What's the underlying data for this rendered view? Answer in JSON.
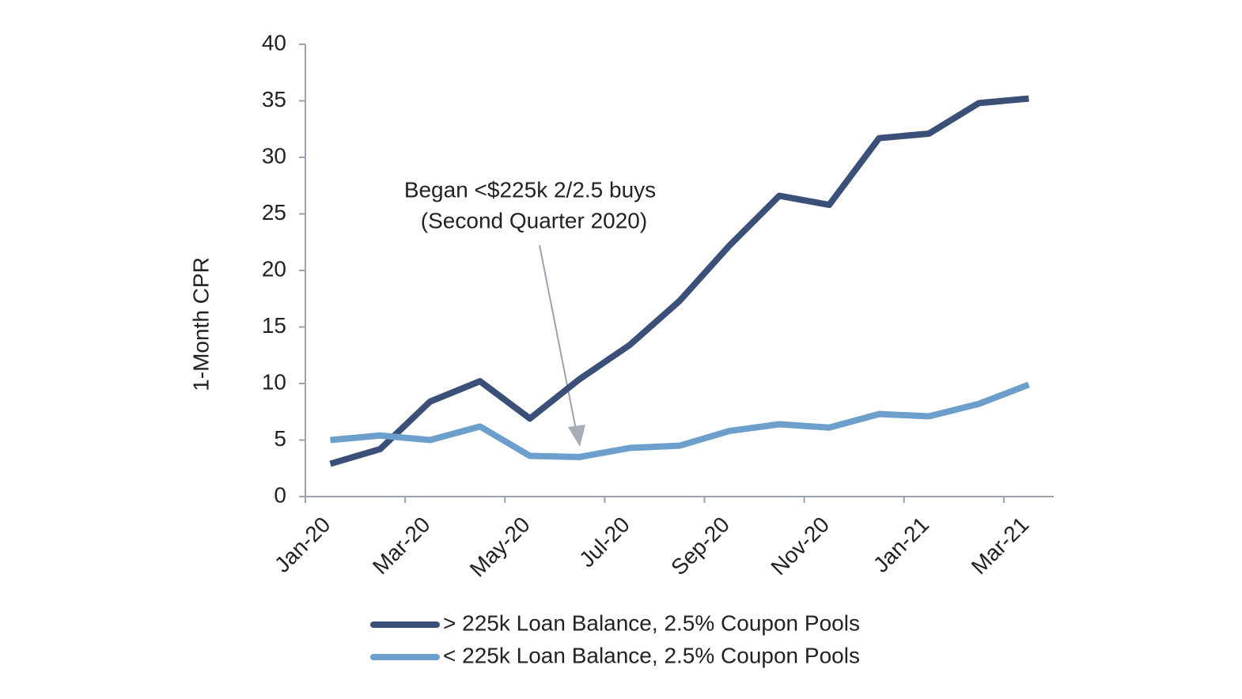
{
  "chart_data": {
    "type": "line",
    "y_label": "1-Month CPR",
    "annotation": [
      "Began <$225k 2/2.5 buys",
      "(Second Quarter 2020)"
    ],
    "categories": [
      "Jan-20",
      null,
      "Mar-20",
      null,
      "May-20",
      null,
      "Jul-20",
      null,
      "Sep-20",
      null,
      "Nov-20",
      null,
      "Jan-21",
      null,
      "Mar-21"
    ],
    "series": [
      {
        "name": "> 225k Loan Balance, 2.5% Coupon Pools",
        "color": "#3b5078",
        "values": [
          2.9,
          4.2,
          8.4,
          10.2,
          6.9,
          10.4,
          13.4,
          17.3,
          22.2,
          26.6,
          25.8,
          31.7,
          32.1,
          34.8,
          35.2
        ]
      },
      {
        "name": "< 225k Loan Balance, 2.5% Coupon Pools",
        "color": "#6c9fcb",
        "values": [
          5.0,
          5.4,
          5.0,
          6.2,
          3.6,
          3.5,
          4.3,
          4.5,
          5.8,
          6.4,
          6.1,
          7.3,
          7.1,
          8.2,
          9.9
        ]
      }
    ],
    "ylim": [
      0,
      40
    ],
    "yticks": [
      0,
      5,
      10,
      15,
      20,
      25,
      30,
      35,
      40
    ],
    "grid": false
  }
}
